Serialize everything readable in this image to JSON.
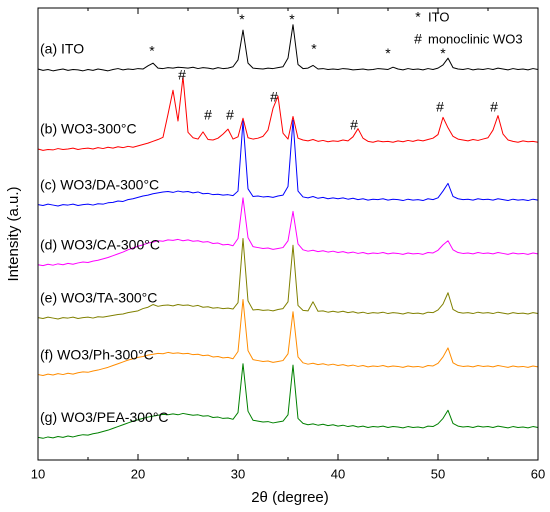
{
  "chart_data": {
    "type": "line",
    "x_label": "2θ (degree)",
    "y_label": "Intensity (a.u.)",
    "xlim": [
      10,
      60
    ],
    "xticks": [
      10,
      20,
      30,
      40,
      50,
      60
    ],
    "xminor_ticks": [
      15,
      25,
      35,
      45,
      55
    ],
    "ylim": [
      0,
      100
    ],
    "x": [
      10,
      10.5,
      11,
      11.5,
      12,
      12.5,
      13,
      13.5,
      14,
      14.5,
      15,
      15.5,
      16,
      16.5,
      17,
      17.5,
      18,
      18.5,
      19,
      19.5,
      20,
      20.5,
      21,
      21.5,
      22,
      22.5,
      23,
      23.5,
      24,
      24.5,
      25,
      25.5,
      26,
      26.5,
      27,
      27.5,
      28,
      28.5,
      29,
      29.5,
      30,
      30.5,
      31,
      31.5,
      32,
      32.5,
      33,
      33.5,
      34,
      34.5,
      35,
      35.5,
      36,
      36.5,
      37,
      37.5,
      38,
      38.5,
      39,
      39.5,
      40,
      40.5,
      41,
      41.5,
      42,
      42.5,
      43,
      43.5,
      44,
      44.5,
      45,
      45.5,
      46,
      46.5,
      47,
      47.5,
      48,
      48.5,
      49,
      49.5,
      50,
      50.5,
      51,
      51.5,
      52,
      52.5,
      53,
      53.5,
      54,
      54.5,
      55,
      55.5,
      56,
      56.5,
      57,
      57.5,
      58,
      58.5,
      59,
      59.5,
      60
    ],
    "series": [
      {
        "name": "(a) ITO",
        "color": "#000000",
        "values": [
          86.5,
          86.2,
          86.4,
          86.1,
          86.3,
          86.5,
          86.2,
          86.4,
          86.3,
          86.1,
          86.4,
          86.2,
          86.5,
          86.3,
          86.1,
          86.4,
          86.6,
          86.3,
          86.5,
          86.4,
          86.6,
          86.5,
          87.2,
          87.8,
          86.7,
          86.6,
          86.8,
          86.7,
          86.9,
          86.8,
          86.7,
          86.9,
          86.6,
          86.8,
          86.7,
          86.5,
          86.8,
          86.6,
          86.7,
          87.0,
          88.5,
          95.1,
          87.8,
          86.7,
          86.6,
          86.5,
          86.7,
          86.6,
          86.8,
          87.0,
          88.9,
          96.3,
          87.5,
          86.6,
          86.7,
          87.3,
          86.5,
          86.6,
          86.4,
          86.5,
          86.4,
          86.6,
          86.5,
          86.3,
          86.4,
          86.5,
          86.3,
          86.4,
          86.6,
          86.5,
          86.4,
          86.9,
          86.5,
          86.3,
          86.6,
          86.4,
          86.5,
          86.3,
          86.6,
          86.4,
          86.7,
          87.4,
          88.9,
          86.8,
          86.5,
          86.4,
          86.6,
          86.3,
          86.5,
          86.4,
          86.6,
          86.4,
          86.7,
          86.5,
          86.3,
          86.6,
          86.4,
          86.5,
          86.3,
          86.6,
          86.4
        ]
      },
      {
        "name": "(b) WO3-300°C",
        "color": "#ff0000",
        "values": [
          68.8,
          68.5,
          68.7,
          68.6,
          68.9,
          68.7,
          68.8,
          69.0,
          68.7,
          68.9,
          69.0,
          68.8,
          69.1,
          68.9,
          69.2,
          69.0,
          69.3,
          69.1,
          69.4,
          69.2,
          69.5,
          69.8,
          70.1,
          70.5,
          70.9,
          71.4,
          76.5,
          81.8,
          75.0,
          84.8,
          72.5,
          71.3,
          71.0,
          72.6,
          70.9,
          70.8,
          71.2,
          72.1,
          73.2,
          71.0,
          71.5,
          75.6,
          71.3,
          71.0,
          71.2,
          71.6,
          73.0,
          77.8,
          80.5,
          72.3,
          71.0,
          76.0,
          71.2,
          70.8,
          70.6,
          70.9,
          70.5,
          70.7,
          70.4,
          70.6,
          70.5,
          70.8,
          70.6,
          71.5,
          73.3,
          71.2,
          70.5,
          70.3,
          70.6,
          70.4,
          70.5,
          70.3,
          70.6,
          70.4,
          70.7,
          70.5,
          70.8,
          70.6,
          70.9,
          71.2,
          72.0,
          75.8,
          73.5,
          71.6,
          71.0,
          70.8,
          70.6,
          70.9,
          70.7,
          71.0,
          71.3,
          73.0,
          76.2,
          72.1,
          70.8,
          70.5,
          70.3,
          70.6,
          70.4,
          70.5,
          70.3
        ]
      },
      {
        "name": "(c) WO3/DA-300°C",
        "color": "#0000ff",
        "values": [
          56.5,
          56.3,
          56.6,
          56.4,
          56.2,
          56.5,
          56.4,
          56.6,
          56.3,
          56.5,
          56.6,
          56.4,
          56.7,
          56.6,
          56.9,
          57.0,
          57.3,
          57.2,
          57.6,
          57.8,
          58.1,
          58.4,
          58.6,
          58.9,
          59.1,
          59.3,
          59.4,
          59.2,
          59.5,
          59.3,
          59.4,
          59.1,
          59.3,
          58.9,
          59.0,
          58.7,
          58.8,
          58.6,
          58.7,
          58.5,
          59.5,
          75.0,
          60.0,
          58.3,
          58.4,
          58.2,
          58.3,
          58.1,
          58.4,
          58.6,
          60.5,
          75.2,
          59.5,
          58.2,
          58.0,
          58.3,
          57.9,
          58.1,
          57.8,
          58.0,
          57.8,
          58.0,
          57.7,
          57.9,
          57.6,
          57.8,
          57.5,
          57.7,
          57.6,
          57.8,
          57.5,
          57.7,
          57.6,
          57.4,
          57.7,
          57.5,
          57.6,
          57.4,
          57.8,
          57.6,
          58.0,
          59.5,
          61.2,
          58.3,
          57.8,
          57.6,
          57.7,
          57.5,
          57.8,
          57.6,
          57.7,
          57.5,
          57.8,
          57.6,
          57.4,
          57.7,
          57.5,
          57.6,
          57.4,
          57.7,
          57.5
        ]
      },
      {
        "name": "(d) WO3/CA-300°C",
        "color": "#ff00ff",
        "values": [
          43.2,
          43.0,
          43.3,
          43.1,
          43.4,
          43.2,
          43.5,
          43.3,
          43.6,
          43.8,
          43.7,
          44.0,
          44.2,
          44.5,
          44.8,
          45.2,
          45.6,
          46.0,
          46.5,
          46.9,
          47.3,
          47.6,
          48.0,
          48.2,
          48.5,
          48.4,
          48.7,
          48.6,
          48.8,
          48.5,
          48.7,
          48.4,
          48.5,
          48.2,
          48.3,
          47.9,
          48.0,
          47.6,
          47.7,
          47.4,
          49.0,
          58.0,
          49.2,
          47.2,
          47.0,
          46.8,
          46.9,
          46.6,
          46.8,
          47.0,
          48.5,
          55.0,
          47.8,
          46.5,
          46.2,
          46.4,
          46.1,
          46.3,
          46.0,
          46.2,
          45.9,
          46.1,
          45.8,
          46.0,
          45.7,
          45.9,
          45.6,
          45.8,
          45.7,
          45.9,
          45.6,
          45.8,
          45.7,
          45.5,
          45.8,
          45.6,
          45.7,
          45.5,
          45.9,
          45.8,
          46.4,
          47.6,
          48.5,
          46.5,
          45.9,
          45.7,
          45.8,
          45.6,
          45.9,
          45.7,
          45.8,
          45.6,
          45.9,
          45.7,
          45.5,
          45.8,
          45.6,
          45.7,
          45.5,
          45.8,
          45.6
        ]
      },
      {
        "name": "(e) WO3/TA-300°C",
        "color": "#808000",
        "values": [
          31.5,
          31.3,
          31.6,
          31.4,
          31.2,
          31.5,
          31.4,
          31.6,
          31.3,
          31.5,
          31.6,
          31.4,
          31.7,
          31.6,
          31.8,
          32.0,
          32.2,
          32.3,
          32.6,
          32.8,
          33.0,
          33.5,
          33.8,
          34.4,
          34.0,
          34.2,
          34.3,
          34.1,
          34.4,
          34.2,
          34.3,
          34.0,
          34.2,
          33.8,
          33.9,
          33.6,
          33.7,
          33.5,
          33.6,
          33.4,
          34.8,
          49.0,
          35.2,
          33.2,
          33.3,
          33.1,
          33.2,
          33.0,
          33.3,
          33.5,
          35.0,
          47.5,
          34.2,
          33.1,
          33.0,
          35.0,
          32.9,
          33.0,
          32.7,
          32.9,
          32.7,
          32.9,
          32.6,
          32.8,
          32.5,
          32.7,
          32.4,
          32.6,
          32.5,
          32.7,
          32.4,
          32.6,
          32.5,
          32.3,
          32.6,
          32.4,
          32.5,
          32.3,
          32.7,
          32.6,
          33.2,
          34.5,
          37.0,
          33.3,
          32.7,
          32.5,
          32.6,
          32.4,
          32.7,
          32.5,
          32.6,
          32.4,
          32.7,
          32.5,
          32.3,
          32.6,
          32.4,
          32.5,
          32.3,
          32.6,
          32.4
        ]
      },
      {
        "name": "(f) WO3/Ph-300°C",
        "color": "#ff8c00",
        "values": [
          18.9,
          18.7,
          19.0,
          18.8,
          19.1,
          18.9,
          19.2,
          19.0,
          19.3,
          19.5,
          19.4,
          19.7,
          19.9,
          20.2,
          20.5,
          20.9,
          21.3,
          21.7,
          22.1,
          22.4,
          22.7,
          22.9,
          23.2,
          23.4,
          23.6,
          23.5,
          23.8,
          23.6,
          23.7,
          23.5,
          23.6,
          23.3,
          23.4,
          23.1,
          23.2,
          22.8,
          22.9,
          22.6,
          22.7,
          22.4,
          24.0,
          35.5,
          24.2,
          22.2,
          22.0,
          21.8,
          21.9,
          21.6,
          21.8,
          22.0,
          23.5,
          32.8,
          22.8,
          21.5,
          21.2,
          21.4,
          21.1,
          21.3,
          21.0,
          21.2,
          20.9,
          21.1,
          20.8,
          21.0,
          20.7,
          20.9,
          20.6,
          20.8,
          20.7,
          20.9,
          20.6,
          20.8,
          20.7,
          20.5,
          20.8,
          20.6,
          20.7,
          20.5,
          20.9,
          20.8,
          21.4,
          22.8,
          24.8,
          21.5,
          20.9,
          20.7,
          20.8,
          20.6,
          20.9,
          20.7,
          20.8,
          20.6,
          20.9,
          20.7,
          20.5,
          20.8,
          20.6,
          20.7,
          20.5,
          20.8,
          20.6
        ]
      },
      {
        "name": "(g) WO3/PEA-300°C",
        "color": "#008000",
        "values": [
          5.0,
          4.8,
          5.1,
          4.9,
          5.2,
          5.0,
          5.3,
          5.1,
          5.4,
          5.6,
          5.5,
          5.8,
          6.0,
          6.3,
          6.6,
          7.0,
          7.4,
          7.8,
          8.2,
          8.6,
          8.9,
          9.2,
          9.5,
          9.7,
          9.9,
          10.1,
          10.0,
          10.2,
          10.0,
          10.3,
          10.1,
          9.9,
          10.0,
          9.7,
          9.8,
          9.4,
          9.5,
          9.2,
          9.3,
          9.0,
          10.5,
          21.3,
          10.8,
          8.8,
          8.6,
          8.4,
          8.5,
          8.2,
          8.4,
          8.6,
          10.0,
          21.0,
          9.2,
          8.1,
          7.8,
          8.0,
          7.7,
          7.9,
          7.6,
          7.8,
          7.5,
          7.7,
          7.4,
          7.6,
          7.3,
          7.5,
          7.2,
          7.4,
          7.3,
          7.5,
          7.2,
          7.4,
          7.3,
          7.1,
          7.4,
          7.2,
          7.3,
          7.1,
          7.5,
          7.4,
          8.0,
          9.2,
          11.0,
          8.1,
          7.5,
          7.3,
          7.4,
          7.2,
          7.5,
          7.3,
          7.4,
          7.2,
          7.5,
          7.3,
          7.1,
          7.4,
          7.2,
          7.3,
          7.1,
          7.4,
          7.2
        ]
      }
    ],
    "annotations": [
      {
        "text": "*",
        "x": 21.4,
        "y": 90.3
      },
      {
        "text": "*",
        "x": 30.4,
        "y": 97.3
      },
      {
        "text": "*",
        "x": 35.4,
        "y": 97.3
      },
      {
        "text": "*",
        "x": 37.6,
        "y": 90.7
      },
      {
        "text": "*",
        "x": 45,
        "y": 89.8
      },
      {
        "text": "*",
        "x": 50.5,
        "y": 89.8
      },
      {
        "text": "#",
        "x": 24.4,
        "y": 85
      },
      {
        "text": "#",
        "x": 27,
        "y": 76.1
      },
      {
        "text": "#",
        "x": 29.2,
        "y": 76.1
      },
      {
        "text": "#",
        "x": 33.6,
        "y": 80.1
      },
      {
        "text": "#",
        "x": 41.6,
        "y": 73.9
      },
      {
        "text": "#",
        "x": 50.2,
        "y": 77.9
      },
      {
        "text": "#",
        "x": 55.6,
        "y": 77.9
      }
    ],
    "key": {
      "position": "top right",
      "entries": [
        {
          "symbol": "*",
          "label": "ITO"
        },
        {
          "symbol": "#",
          "label": "monoclinic WO3"
        }
      ]
    }
  }
}
